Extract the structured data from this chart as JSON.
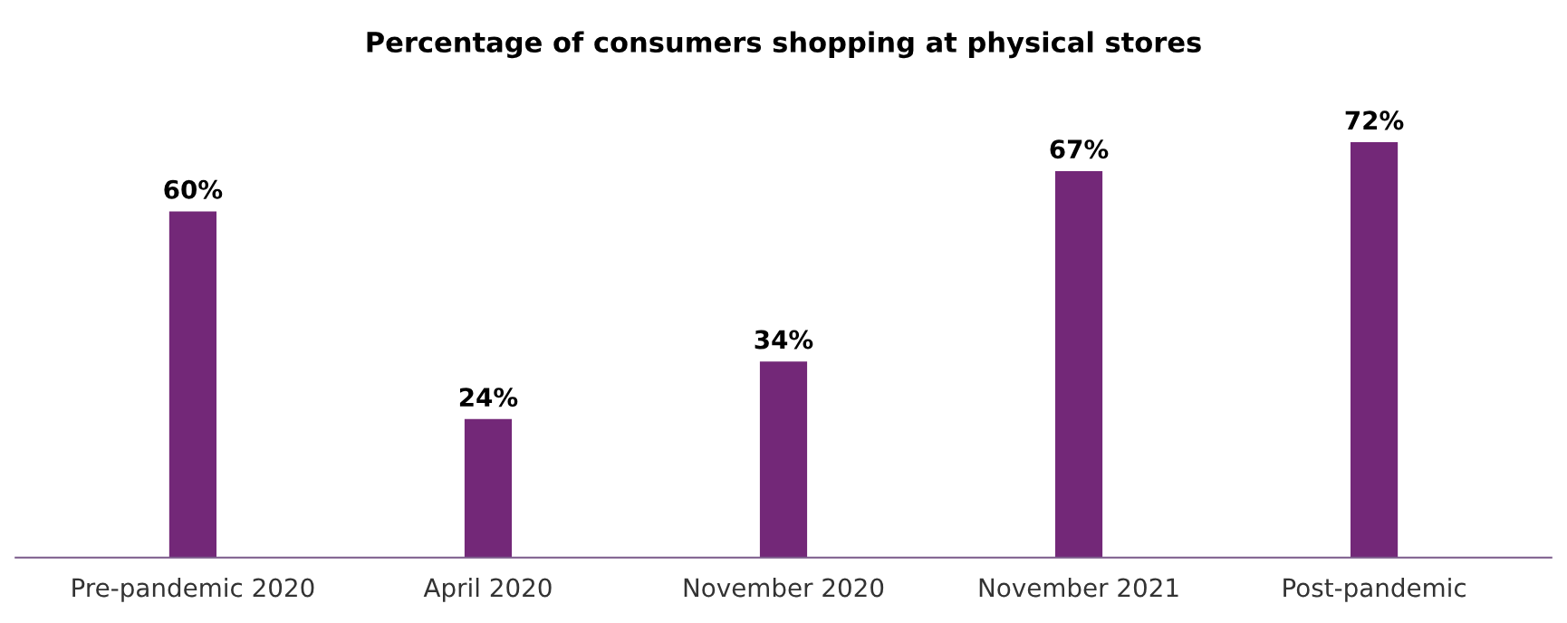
{
  "chart_data": {
    "type": "bar",
    "title": "Percentage of consumers shopping at physical stores",
    "categories": [
      "Pre-pandemic 2020",
      "April 2020",
      "November 2020",
      "November 2021",
      "Post-pandemic"
    ],
    "values": [
      60,
      24,
      34,
      67,
      72
    ],
    "value_labels": [
      "60%",
      "24%",
      "34%",
      "67%",
      "72%"
    ],
    "color": "#732878",
    "grid": false,
    "legend": false,
    "tick_labels": "x"
  }
}
